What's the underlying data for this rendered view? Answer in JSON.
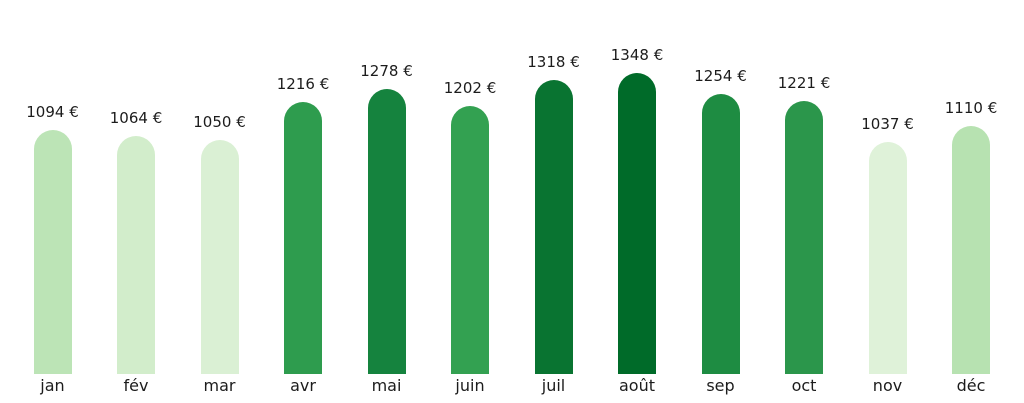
{
  "chart_data": {
    "type": "bar",
    "title": "",
    "xlabel": "",
    "ylabel": "",
    "currency": "€",
    "categories": [
      "jan",
      "fév",
      "mar",
      "avr",
      "mai",
      "juin",
      "juil",
      "août",
      "sep",
      "oct",
      "nov",
      "déc"
    ],
    "values": [
      1094,
      1064,
      1050,
      1216,
      1278,
      1202,
      1318,
      1348,
      1254,
      1221,
      1037,
      1110
    ],
    "value_labels": [
      "1094 €",
      "1064 €",
      "1050 €",
      "1216 €",
      "1278 €",
      "1202 €",
      "1318 €",
      "1348 €",
      "1254 €",
      "1221 €",
      "1037 €",
      "1110 €"
    ],
    "bar_colors": [
      "#bce4b6",
      "#d2edcb",
      "#daf0d4",
      "#2e9c4e",
      "#15833e",
      "#33a151",
      "#097431",
      "#006b29",
      "#1e8c42",
      "#2b964b",
      "#dff2d9",
      "#b7e2b1"
    ],
    "ylim": [
      0,
      1348
    ],
    "grid": false,
    "axes_visible": false,
    "legend": "none",
    "bar_style": "rounded-top",
    "background_color": "#ffffff",
    "text_color": "#1c1c1c"
  }
}
